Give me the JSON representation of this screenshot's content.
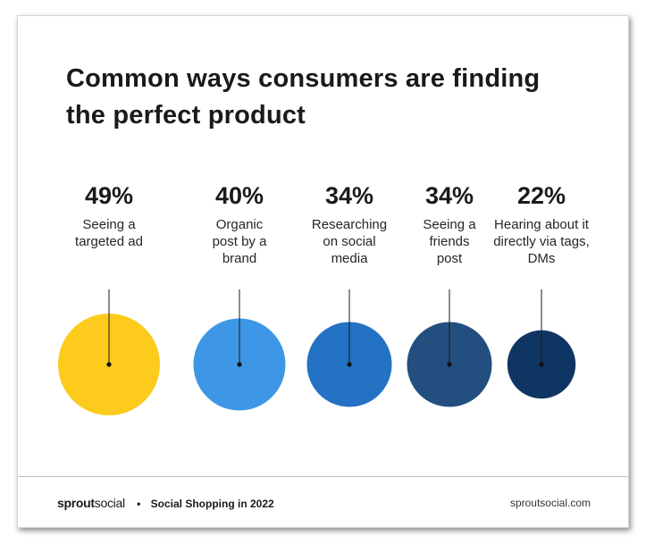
{
  "title": "Common ways consumers are finding the perfect product",
  "chart_data": {
    "type": "bubble",
    "title": "Common ways consumers are finding the perfect product",
    "categories": [
      "Seeing a targeted ad",
      "Organic post by a brand",
      "Researching on social media",
      "Seeing a friends post",
      "Hearing about it directly via tags, DMs"
    ],
    "values": [
      49,
      40,
      34,
      34,
      22
    ],
    "value_labels": [
      "49%",
      "40%",
      "34%",
      "34%",
      "22%"
    ],
    "colors": [
      "#fccb1b",
      "#3d97e6",
      "#2372c3",
      "#234f80",
      "#0f3563"
    ]
  },
  "footer": {
    "brand_part1": "sprout",
    "brand_part2": "social",
    "separator": "•",
    "report": "Social Shopping in 2022",
    "url": "sproutsocial.com"
  }
}
